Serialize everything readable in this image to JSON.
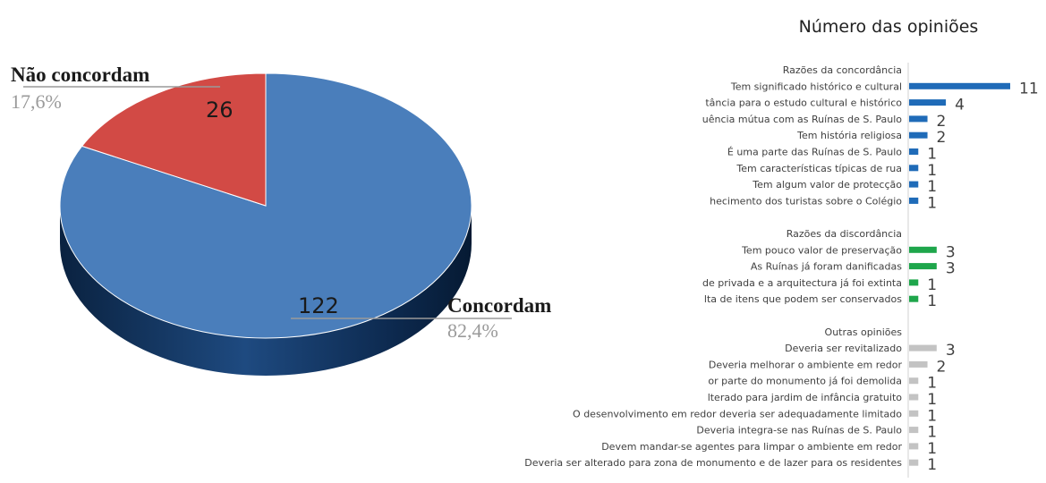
{
  "chart_data": [
    {
      "type": "pie",
      "title": "",
      "slices": [
        {
          "label": "Concordam",
          "value": 122,
          "percent": "82,4%",
          "color": "#4a7ebb"
        },
        {
          "label": "Não concordam",
          "value": 26,
          "percent": "17,6%",
          "color": "#d24a45"
        }
      ]
    },
    {
      "type": "bar",
      "orientation": "horizontal",
      "title": "Número das opiniões",
      "xlim": [
        0,
        11
      ],
      "groups": [
        {
          "label": "Razões da concordância",
          "color": "#1f6bb8",
          "items": [
            {
              "label": "Tem significado histórico e cultural",
              "value": 11
            },
            {
              "label": "tância para o estudo cultural e histórico",
              "value": 4
            },
            {
              "label": "uência mútua com as Ruínas de S. Paulo",
              "value": 2
            },
            {
              "label": "Tem história religiosa",
              "value": 2
            },
            {
              "label": "É uma parte das Ruínas de S. Paulo",
              "value": 1
            },
            {
              "label": "Tem características típicas de rua",
              "value": 1
            },
            {
              "label": "Tem algum valor de protecção",
              "value": 1
            },
            {
              "label": "hecimento dos turistas sobre o Colégio",
              "value": 1
            }
          ]
        },
        {
          "label": "Razões da discordância",
          "color": "#1ea64b",
          "items": [
            {
              "label": "Tem pouco valor de preservação",
              "value": 3
            },
            {
              "label": "As Ruínas já foram danificadas",
              "value": 3
            },
            {
              "label": "de privada e a arquitectura já foi extinta",
              "value": 1
            },
            {
              "label": "lta de itens que podem ser conservados",
              "value": 1
            }
          ]
        },
        {
          "label": "Outras opiniões",
          "color": "#c3c3c3",
          "items": [
            {
              "label": "Deveria ser revitalizado",
              "value": 3
            },
            {
              "label": "Deveria melhorar o ambiente em redor",
              "value": 2
            },
            {
              "label": "or parte do monumento já foi demolida",
              "value": 1
            },
            {
              "label": "lterado para jardim de infância gratuito",
              "value": 1
            },
            {
              "label": "O desenvolvimento em redor deveria ser adequadamente limitado",
              "value": 1
            },
            {
              "label": "Deveria integra-se nas Ruínas de S. Paulo",
              "value": 1
            },
            {
              "label": "Devem mandar-se agentes para limpar o ambiente em redor",
              "value": 1
            },
            {
              "label": "Deveria ser alterado para zona de monumento e de lazer para os residentes",
              "value": 1
            }
          ]
        }
      ]
    }
  ]
}
